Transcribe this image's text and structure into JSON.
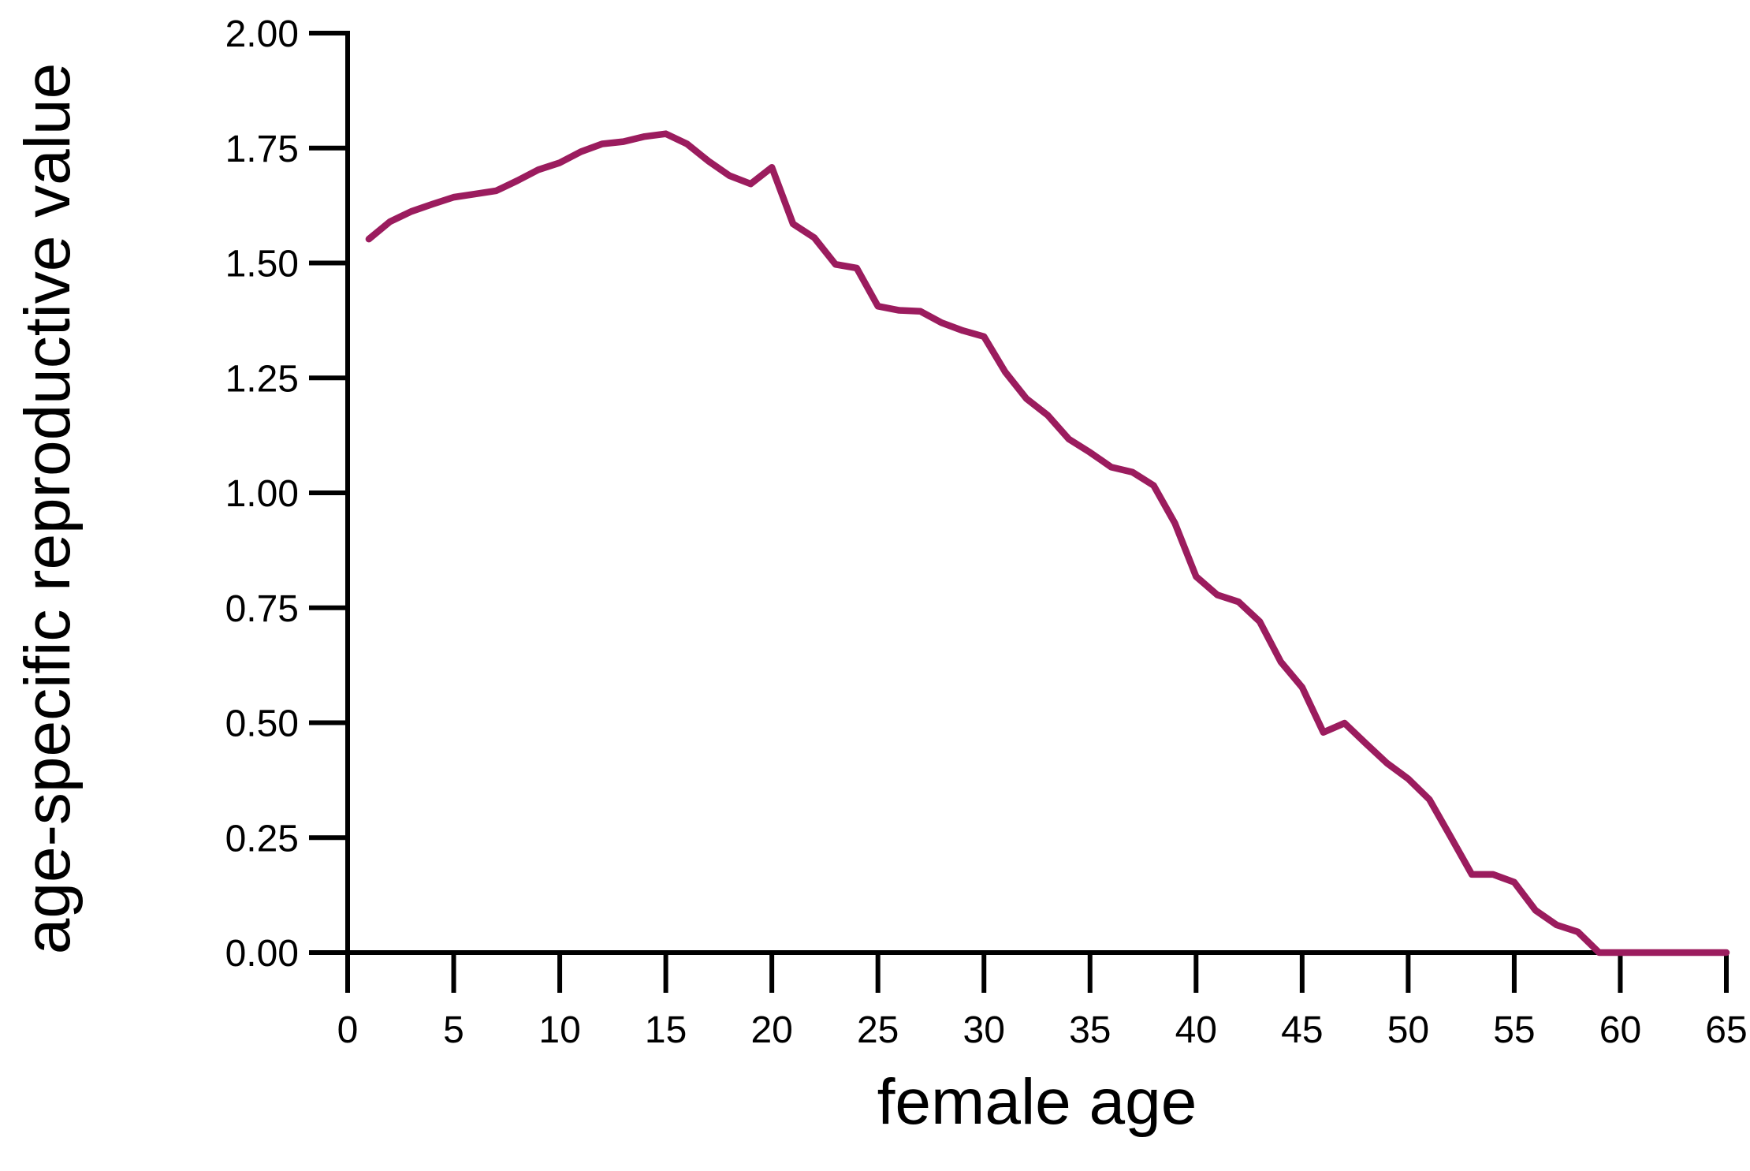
{
  "chart_data": {
    "type": "line",
    "title": "",
    "xlabel": "female age",
    "ylabel": "age-specific reproductive value",
    "xlim": [
      0,
      65
    ],
    "ylim": [
      0,
      2
    ],
    "x_ticks": [
      0,
      5,
      10,
      15,
      20,
      25,
      30,
      35,
      40,
      45,
      50,
      55,
      60,
      65
    ],
    "x_tick_labels": [
      "0",
      "5",
      "10",
      "15",
      "20",
      "25",
      "30",
      "35",
      "40",
      "45",
      "50",
      "55",
      "60",
      "65"
    ],
    "y_ticks": [
      0,
      0.25,
      0.5,
      0.75,
      1,
      1.25,
      1.5,
      1.75,
      2
    ],
    "y_tick_labels": [
      "0.00",
      "0.25",
      "0.50",
      "0.75",
      "1.00",
      "1.25",
      "1.50",
      "1.75",
      "2.00"
    ],
    "grid": false,
    "legend": "none",
    "line_color": "#9b1c5e",
    "series": [
      {
        "x": [
          1,
          2,
          3,
          4,
          5,
          6,
          7,
          8,
          9,
          10,
          11,
          12,
          13,
          14,
          15,
          16,
          17,
          18,
          19,
          20,
          21,
          22,
          23,
          24,
          25,
          26,
          27,
          28,
          29,
          30,
          31,
          32,
          33,
          34,
          35,
          36,
          37,
          38,
          39,
          40,
          41,
          42,
          43,
          44,
          45,
          46,
          47,
          48,
          49,
          50,
          51,
          52,
          53,
          54,
          55,
          56,
          57,
          58,
          59,
          60,
          61,
          62,
          63,
          64,
          65
        ],
        "values": [
          1.552,
          1.59,
          1.612,
          1.628,
          1.643,
          1.65,
          1.657,
          1.679,
          1.703,
          1.718,
          1.742,
          1.759,
          1.764,
          1.775,
          1.781,
          1.759,
          1.722,
          1.69,
          1.672,
          1.708,
          1.585,
          1.555,
          1.497,
          1.489,
          1.406,
          1.397,
          1.395,
          1.37,
          1.353,
          1.34,
          1.263,
          1.205,
          1.169,
          1.117,
          1.088,
          1.056,
          1.045,
          1.016,
          0.934,
          0.818,
          0.778,
          0.763,
          0.72,
          0.632,
          0.577,
          0.479,
          0.499,
          0.455,
          0.412,
          0.378,
          0.333,
          0.252,
          0.17,
          0.17,
          0.153,
          0.092,
          0.06,
          0.045,
          0.0,
          0.0,
          0.0,
          0.0,
          0.0,
          0.0,
          0.0
        ]
      }
    ]
  }
}
